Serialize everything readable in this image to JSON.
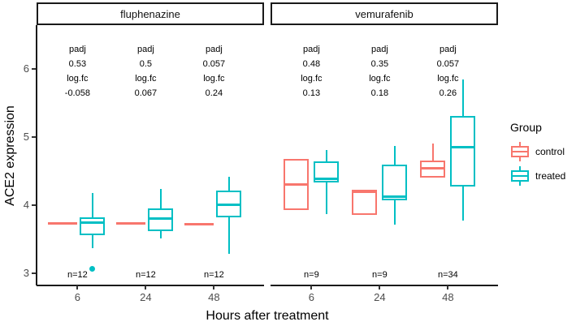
{
  "chart_data": {
    "type": "boxplot",
    "title": "",
    "xlabel": "Hours after treatment",
    "ylabel": "ACE2 expression",
    "ylim": [
      2.9,
      6.4
    ],
    "y_ticks": [
      6,
      5,
      4,
      3
    ],
    "x_categories": [
      "6",
      "24",
      "48"
    ],
    "grid": "off",
    "annotation_labels": {
      "padj": "padj",
      "logfc": "log.fc"
    },
    "legend": {
      "title": "Group",
      "position": "right",
      "entries": [
        {
          "label": "control",
          "color": "#F8766D"
        },
        {
          "label": "treated",
          "color": "#00BFC4"
        }
      ]
    },
    "facets": [
      {
        "label": "fluphenazine",
        "groups": [
          {
            "x": "6",
            "n_label": "n=12",
            "padj": "0.53",
            "logfc": "-0.058",
            "control": {
              "median": 3.73
            },
            "treated": {
              "whisker_low": 3.37,
              "q1": 3.56,
              "median": 3.74,
              "q3": 3.82,
              "whisker_high": 4.18,
              "outliers": [
                3.06
              ]
            }
          },
          {
            "x": "24",
            "n_label": "n=12",
            "padj": "0.5",
            "logfc": "0.067",
            "control": {
              "median": 3.73
            },
            "treated": {
              "whisker_low": 3.51,
              "q1": 3.62,
              "median": 3.8,
              "q3": 3.95,
              "whisker_high": 4.24,
              "outliers": []
            }
          },
          {
            "x": "48",
            "n_label": "n=12",
            "padj": "0.057",
            "logfc": "0.24",
            "control": {
              "median": 3.72
            },
            "treated": {
              "whisker_low": 3.29,
              "q1": 3.82,
              "median": 4.01,
              "q3": 4.21,
              "whisker_high": 4.42,
              "outliers": []
            }
          }
        ]
      },
      {
        "label": "vemurafenib",
        "groups": [
          {
            "x": "6",
            "n_label": "n=9",
            "padj": "0.48",
            "logfc": "0.13",
            "control": {
              "q1": 3.93,
              "median": 4.3,
              "q3": 4.68,
              "outliers": []
            },
            "treated": {
              "whisker_low": 3.87,
              "q1": 4.33,
              "median": 4.39,
              "q3": 4.64,
              "whisker_high": 4.81,
              "outliers": []
            }
          },
          {
            "x": "24",
            "n_label": "n=9",
            "padj": "0.35",
            "logfc": "0.18",
            "control": {
              "q1": 3.86,
              "median": 4.2,
              "q3": 4.23,
              "outliers": []
            },
            "treated": {
              "whisker_low": 3.71,
              "q1": 4.07,
              "median": 4.13,
              "q3": 4.6,
              "whisker_high": 4.87,
              "outliers": []
            }
          },
          {
            "x": "48",
            "n_label": "n=34",
            "padj": "0.057",
            "logfc": "0.26",
            "control": {
              "q1": 4.4,
              "median": 4.54,
              "q3": 4.65,
              "whisker_high": 4.9,
              "outliers": []
            },
            "treated": {
              "whisker_low": 3.77,
              "q1": 4.27,
              "median": 4.85,
              "q3": 5.31,
              "whisker_high": 5.85,
              "outliers": []
            }
          }
        ]
      }
    ]
  }
}
